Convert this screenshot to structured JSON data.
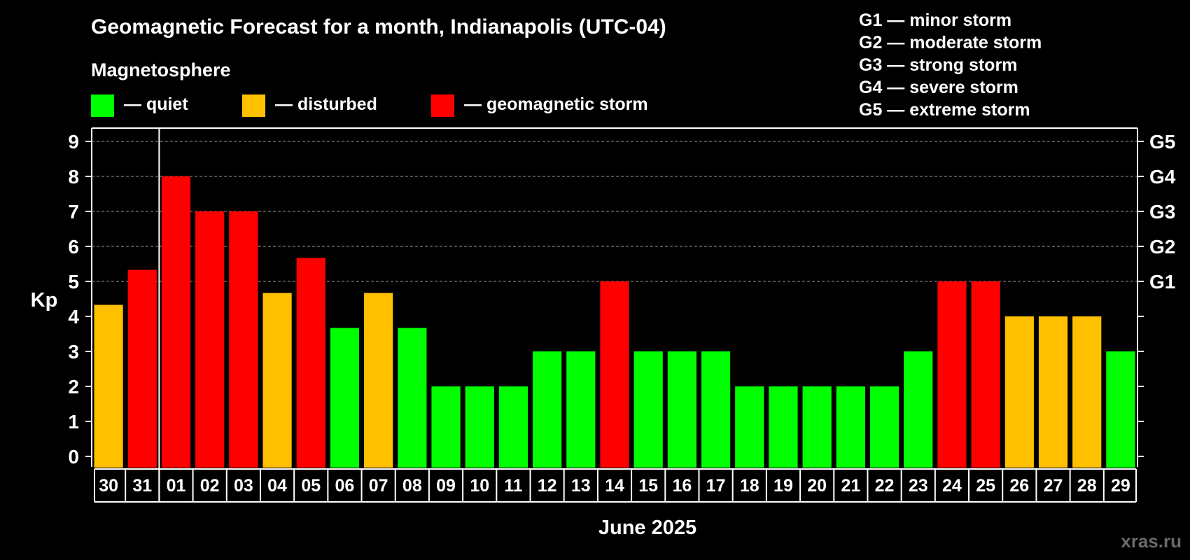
{
  "title": "Geomagnetic Forecast for a month, Indianapolis (UTC-04)",
  "magnetosphere_label": "Magnetosphere",
  "legend": [
    {
      "label": "— quiet",
      "color": "#00ff00"
    },
    {
      "label": "— disturbed",
      "color": "#ffc000"
    },
    {
      "label": "— geomagnetic storm",
      "color": "#ff0000"
    }
  ],
  "storm_scale": [
    "G1 — minor storm",
    "G2 — moderate storm",
    "G3 — strong storm",
    "G4 — severe storm",
    "G5 — extreme storm"
  ],
  "watermark": "xras.ru",
  "chart_data": {
    "type": "bar",
    "title": "Geomagnetic Forecast for a month, Indianapolis (UTC-04)",
    "xlabel": "June 2025",
    "ylabel": "Kp",
    "ylim": [
      0,
      9
    ],
    "yticks": [
      "0",
      "1",
      "2",
      "3",
      "4",
      "5",
      "6",
      "7",
      "8",
      "9"
    ],
    "right_axis_labels": [
      {
        "value": 5,
        "label": "G1"
      },
      {
        "value": 6,
        "label": "G2"
      },
      {
        "value": 7,
        "label": "G3"
      },
      {
        "value": 8,
        "label": "G4"
      },
      {
        "value": 9,
        "label": "G5"
      }
    ],
    "grid": "dashed horizontal at Kp 5–9",
    "month_divider_after": "31",
    "categories": [
      "30",
      "31",
      "01",
      "02",
      "03",
      "04",
      "05",
      "06",
      "07",
      "08",
      "09",
      "10",
      "11",
      "12",
      "13",
      "14",
      "15",
      "16",
      "17",
      "18",
      "19",
      "20",
      "21",
      "22",
      "23",
      "24",
      "25",
      "26",
      "27",
      "28",
      "29"
    ],
    "values": [
      4.33,
      5.33,
      8,
      7,
      7,
      4.67,
      5.67,
      3.67,
      4.67,
      3.67,
      2,
      2,
      2,
      3,
      3,
      5,
      3,
      3,
      3,
      2,
      2,
      2,
      2,
      2,
      3,
      5,
      5,
      4,
      4,
      4,
      3
    ],
    "levels": [
      "disturbed",
      "storm",
      "storm",
      "storm",
      "storm",
      "disturbed",
      "storm",
      "quiet",
      "disturbed",
      "quiet",
      "quiet",
      "quiet",
      "quiet",
      "quiet",
      "quiet",
      "storm",
      "quiet",
      "quiet",
      "quiet",
      "quiet",
      "quiet",
      "quiet",
      "quiet",
      "quiet",
      "quiet",
      "storm",
      "storm",
      "disturbed",
      "disturbed",
      "disturbed",
      "quiet"
    ],
    "level_colors": {
      "quiet": "#00ff00",
      "disturbed": "#ffc000",
      "storm": "#ff0000"
    }
  }
}
